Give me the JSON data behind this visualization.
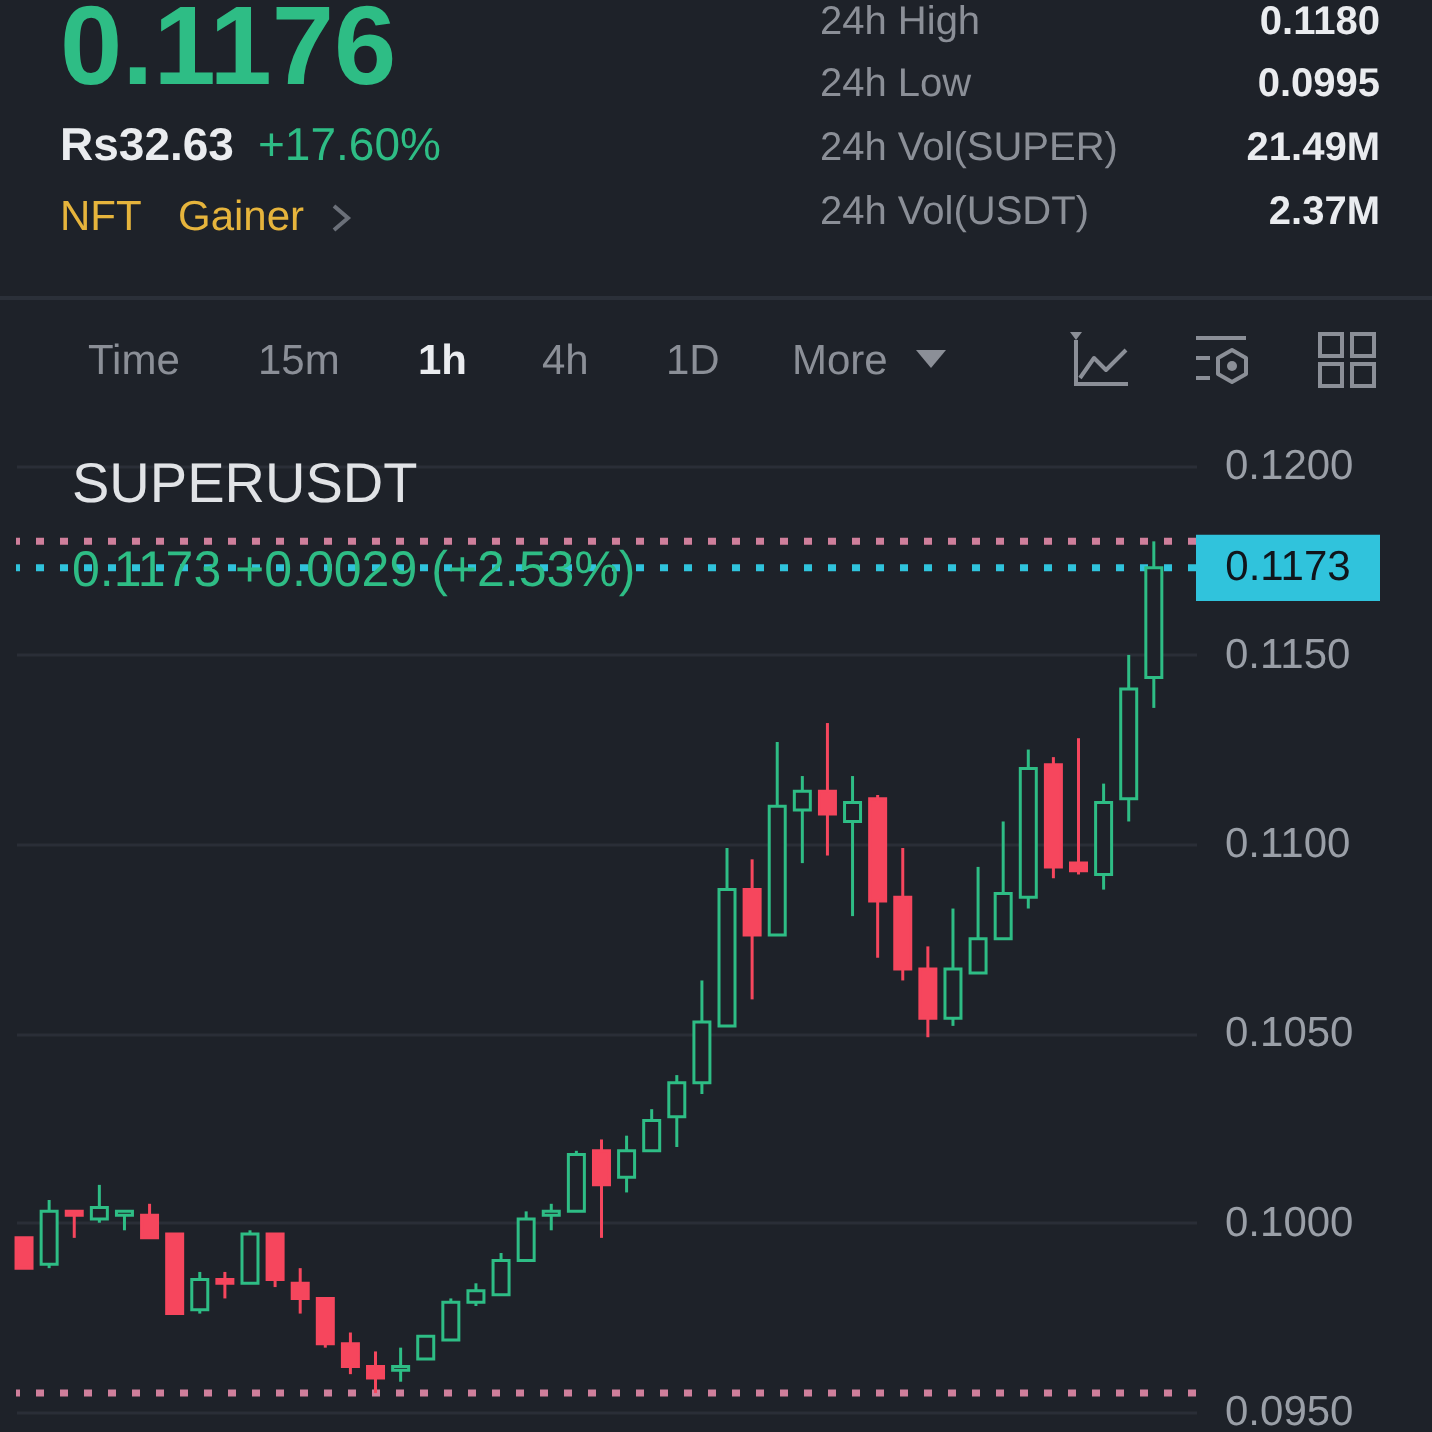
{
  "chart_data": [
    {
      "type": "other",
      "annotations": [
        "0.1176",
        "Rs32.63",
        "+17.60%",
        "NFT",
        "Gainer",
        "24h High",
        "0.1180",
        "24h Low",
        "0.0995",
        "24h Vol(SUPER)",
        "21.49M",
        "24h Vol(USDT)",
        "2.37M",
        "Time",
        "15m",
        "1h",
        "4h",
        "1D",
        "More"
      ]
    },
    {
      "type": "candlestick",
      "title": "SUPERUSDT",
      "annotations": [
        "0.1173 +0.0029 (+2.53%)"
      ],
      "categories": [
        null,
        null,
        null,
        null,
        null,
        null,
        null,
        null,
        null,
        null,
        null,
        null,
        null,
        null,
        null,
        null,
        null,
        null,
        null,
        null,
        null,
        null,
        null,
        null,
        null,
        null,
        null,
        null,
        null,
        null,
        null,
        null,
        null,
        null,
        null,
        null,
        null,
        null,
        null,
        null,
        null,
        null,
        null,
        null,
        null,
        null
      ],
      "ohlc": [
        [
          0.0996,
          0.0996,
          0.0988,
          0.0988
        ],
        [
          0.0989,
          0.1006,
          0.0988,
          0.1003
        ],
        [
          0.1003,
          0.1003,
          0.0996,
          0.1002
        ],
        [
          0.1001,
          0.101,
          0.1,
          0.1004
        ],
        [
          0.1002,
          0.1003,
          0.0998,
          0.1003
        ],
        [
          0.1002,
          0.1005,
          0.0996,
          0.0996
        ],
        [
          0.0997,
          0.0997,
          0.0976,
          0.0976
        ],
        [
          0.0977,
          0.0987,
          0.0976,
          0.0985
        ],
        [
          0.0985,
          0.0987,
          0.098,
          0.0984
        ],
        [
          0.0984,
          0.0998,
          0.0984,
          0.0997
        ],
        [
          0.0997,
          0.0997,
          0.0983,
          0.0985
        ],
        [
          0.0984,
          0.0988,
          0.0976,
          0.098
        ],
        [
          0.098,
          0.098,
          0.0967,
          0.0968
        ],
        [
          0.0968,
          0.0971,
          0.096,
          0.0962
        ],
        [
          0.0962,
          0.0966,
          0.0955,
          0.0959
        ],
        [
          0.0961,
          0.0967,
          0.0958,
          0.0962
        ],
        [
          0.0964,
          0.097,
          0.0964,
          0.097
        ],
        [
          0.0969,
          0.098,
          0.0969,
          0.0979
        ],
        [
          0.0979,
          0.0984,
          0.0978,
          0.0982
        ],
        [
          0.0981,
          0.0992,
          0.0981,
          0.099
        ],
        [
          0.099,
          0.1003,
          0.099,
          0.1001
        ],
        [
          0.1002,
          0.1005,
          0.0998,
          0.1003
        ],
        [
          0.1003,
          0.1019,
          0.1003,
          0.1018
        ],
        [
          0.1019,
          0.1022,
          0.0996,
          0.101
        ],
        [
          0.1012,
          0.1023,
          0.1008,
          0.1019
        ],
        [
          0.1019,
          0.103,
          0.1019,
          0.1027
        ],
        [
          0.1028,
          0.1039,
          0.102,
          0.1037
        ],
        [
          0.1037,
          0.1064,
          0.1034,
          0.1053
        ],
        [
          0.1052,
          0.1099,
          0.1052,
          0.1088
        ],
        [
          0.1088,
          0.1096,
          0.1059,
          0.1076
        ],
        [
          0.1076,
          0.1127,
          0.1076,
          0.111
        ],
        [
          0.1109,
          0.1118,
          0.1095,
          0.1114
        ],
        [
          0.1114,
          0.1132,
          0.1097,
          0.1108
        ],
        [
          0.1106,
          0.1118,
          0.1081,
          0.1111
        ],
        [
          0.1112,
          0.1113,
          0.107,
          0.1085
        ],
        [
          0.1086,
          0.1099,
          0.1064,
          0.1067
        ],
        [
          0.1067,
          0.1073,
          0.1049,
          0.1054
        ],
        [
          0.1054,
          0.1083,
          0.1052,
          0.1067
        ],
        [
          0.1066,
          0.1094,
          0.1066,
          0.1075
        ],
        [
          0.1075,
          0.1106,
          0.1075,
          0.1087
        ],
        [
          0.1086,
          0.1125,
          0.1083,
          0.112
        ],
        [
          0.1121,
          0.1123,
          0.1091,
          0.1094
        ],
        [
          0.1095,
          0.1128,
          0.1092,
          0.1093
        ],
        [
          0.1092,
          0.1116,
          0.1088,
          0.1111
        ],
        [
          0.1112,
          0.115,
          0.1106,
          0.1141
        ],
        [
          0.1144,
          0.118,
          0.1136,
          0.1173
        ]
      ],
      "colors": [
        "#f6465d",
        "#2ebd85",
        "#f6465d",
        "#2ebd85",
        "#2ebd85",
        "#f6465d",
        "#f6465d",
        "#2ebd85",
        "#f6465d",
        "#2ebd85",
        "#f6465d",
        "#f6465d",
        "#f6465d",
        "#f6465d",
        "#f6465d",
        "#2ebd85",
        "#2ebd85",
        "#2ebd85",
        "#2ebd85",
        "#2ebd85",
        "#2ebd85",
        "#2ebd85",
        "#2ebd85",
        "#f6465d",
        "#2ebd85",
        "#2ebd85",
        "#2ebd85",
        "#2ebd85",
        "#2ebd85",
        "#f6465d",
        "#2ebd85",
        "#2ebd85",
        "#f6465d",
        "#2ebd85",
        "#f6465d",
        "#f6465d",
        "#f6465d",
        "#2ebd85",
        "#2ebd85",
        "#2ebd85",
        "#2ebd85",
        "#f6465d",
        "#f6465d",
        "#2ebd85",
        "#2ebd85",
        "#2ebd85"
      ],
      "ylim": [
        0.095,
        0.1211
      ],
      "yticks": [
        {
          "value": 0.095,
          "label": "0.0950"
        },
        {
          "value": 0.1,
          "label": "0.1000"
        },
        {
          "value": 0.105,
          "label": "0.1050"
        },
        {
          "value": 0.11,
          "label": "0.1100"
        },
        {
          "value": 0.115,
          "label": "0.1150"
        },
        {
          "value": 0.12,
          "label": "0.1200"
        }
      ],
      "ref_lines": [
        {
          "axis": "y",
          "value": 0.118,
          "color": "#cf7f9b",
          "line_style": "dotted"
        },
        {
          "axis": "y",
          "value": 0.1173,
          "label": "0.1173",
          "color": "#30c3dc",
          "line_style": "dotted"
        },
        {
          "axis": "y",
          "value": 0.0955,
          "color": "#cf7f9b",
          "line_style": "dotted"
        }
      ],
      "grid": "y",
      "tick_labels": "y"
    }
  ]
}
